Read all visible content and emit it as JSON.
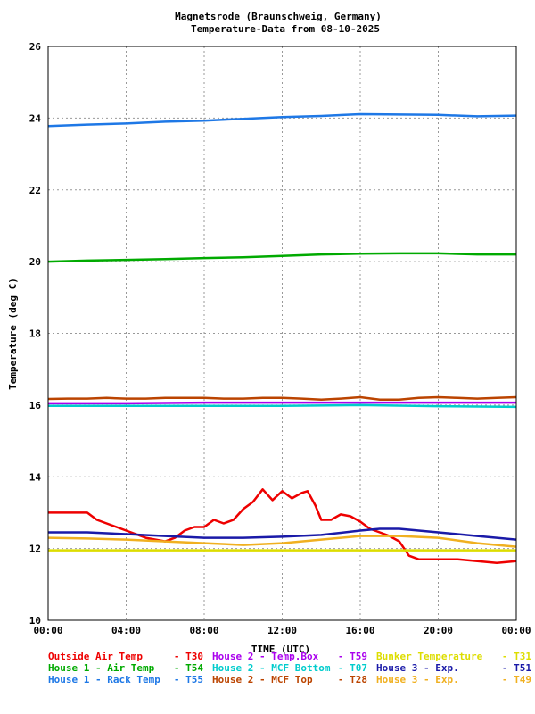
{
  "chart_data": {
    "type": "line",
    "title": "Magnetsrode (Braunschweig, Germany)",
    "subtitle": "Temperature-Data from 08-10-2025",
    "xlabel": "TIME (UTC)",
    "ylabel": "Temperature (deg C)",
    "xlim": [
      0,
      24
    ],
    "ylim": [
      10,
      26
    ],
    "x_ticks": [
      "00:00",
      "04:00",
      "08:00",
      "12:00",
      "16:00",
      "20:00",
      "00:00"
    ],
    "y_ticks": [
      "10",
      "12",
      "14",
      "16",
      "18",
      "20",
      "22",
      "24",
      "26"
    ],
    "grid": true,
    "legend_position": "bottom",
    "series": [
      {
        "name": "Outside Air Temp",
        "code": "T30",
        "color": "#ee0000",
        "x": [
          0,
          1,
          2,
          2.5,
          3,
          4,
          5,
          6,
          6.5,
          7,
          7.5,
          8,
          8.5,
          9,
          9.5,
          10,
          10.5,
          11,
          11.5,
          12,
          12.5,
          13,
          13.3,
          13.7,
          14,
          14.5,
          15,
          15.5,
          16,
          16.5,
          17,
          17.5,
          18,
          18.5,
          19,
          19.5,
          20,
          21,
          22,
          23,
          24
        ],
        "values": [
          13.0,
          13.0,
          13.0,
          12.8,
          12.7,
          12.5,
          12.3,
          12.2,
          12.3,
          12.5,
          12.6,
          12.6,
          12.8,
          12.7,
          12.8,
          13.1,
          13.3,
          13.65,
          13.35,
          13.6,
          13.4,
          13.55,
          13.6,
          13.2,
          12.8,
          12.8,
          12.95,
          12.9,
          12.75,
          12.55,
          12.45,
          12.35,
          12.2,
          11.8,
          11.7,
          11.7,
          11.7,
          11.7,
          11.65,
          11.6,
          11.65
        ]
      },
      {
        "name": "House 1 - Air  Temp",
        "code": "T54",
        "color": "#00aa00",
        "x": [
          0,
          2,
          4,
          6,
          8,
          10,
          12,
          14,
          16,
          18,
          20,
          22,
          24
        ],
        "values": [
          20.0,
          20.03,
          20.05,
          20.07,
          20.1,
          20.12,
          20.16,
          20.2,
          20.22,
          20.23,
          20.23,
          20.2,
          20.2
        ]
      },
      {
        "name": "House 1 - Rack Temp",
        "code": "T55",
        "color": "#1e78e6",
        "x": [
          0,
          2,
          4,
          6,
          8,
          10,
          12,
          14,
          16,
          18,
          20,
          22,
          24
        ],
        "values": [
          23.78,
          23.82,
          23.85,
          23.9,
          23.93,
          23.98,
          24.03,
          24.06,
          24.11,
          24.1,
          24.09,
          24.05,
          24.07
        ]
      },
      {
        "name": "House 2 - Temp.Box",
        "code": "T59",
        "color": "#aa00ee",
        "x": [
          0,
          4,
          8,
          12,
          16,
          20,
          24
        ],
        "values": [
          16.05,
          16.05,
          16.07,
          16.07,
          16.07,
          16.07,
          16.07
        ]
      },
      {
        "name": "House 2 - MCF Bottom",
        "code": "T07",
        "color": "#00cccc",
        "x": [
          0,
          4,
          8,
          12,
          16,
          20,
          24
        ],
        "values": [
          15.98,
          15.98,
          15.98,
          15.98,
          16.0,
          15.97,
          15.95
        ]
      },
      {
        "name": "House 2 - MCF Top",
        "code": "T28",
        "color": "#bb4400",
        "x": [
          0,
          1,
          2,
          3,
          4,
          5,
          6,
          7,
          8,
          9,
          10,
          11,
          12,
          13,
          14,
          15,
          16,
          17,
          18,
          19,
          20,
          21,
          22,
          23,
          24
        ],
        "values": [
          16.17,
          16.18,
          16.18,
          16.2,
          16.18,
          16.18,
          16.2,
          16.2,
          16.2,
          16.18,
          16.18,
          16.2,
          16.2,
          16.18,
          16.15,
          16.18,
          16.22,
          16.15,
          16.15,
          16.2,
          16.22,
          16.2,
          16.18,
          16.2,
          16.22
        ]
      },
      {
        "name": "Bunker Temperature",
        "code": "T31",
        "color": "#dddd00",
        "x": [
          0,
          4,
          8,
          12,
          16,
          20,
          24
        ],
        "values": [
          11.95,
          11.95,
          11.95,
          11.95,
          11.95,
          11.95,
          11.95
        ]
      },
      {
        "name": "House 3 - Exp.",
        "code": "T51",
        "color": "#1a1aa8",
        "x": [
          0,
          2,
          4,
          6,
          8,
          10,
          12,
          14,
          16,
          17,
          18,
          20,
          22,
          24
        ],
        "values": [
          12.45,
          12.45,
          12.4,
          12.35,
          12.3,
          12.3,
          12.33,
          12.38,
          12.5,
          12.55,
          12.55,
          12.45,
          12.35,
          12.25
        ]
      },
      {
        "name": "House 3 - Exp.",
        "code": "T49",
        "color": "#f0b020",
        "x": [
          0,
          2,
          4,
          6,
          8,
          10,
          12,
          14,
          16,
          17,
          18,
          20,
          22,
          24
        ],
        "values": [
          12.3,
          12.28,
          12.25,
          12.2,
          12.15,
          12.1,
          12.15,
          12.25,
          12.35,
          12.35,
          12.35,
          12.3,
          12.15,
          12.05
        ]
      }
    ]
  }
}
